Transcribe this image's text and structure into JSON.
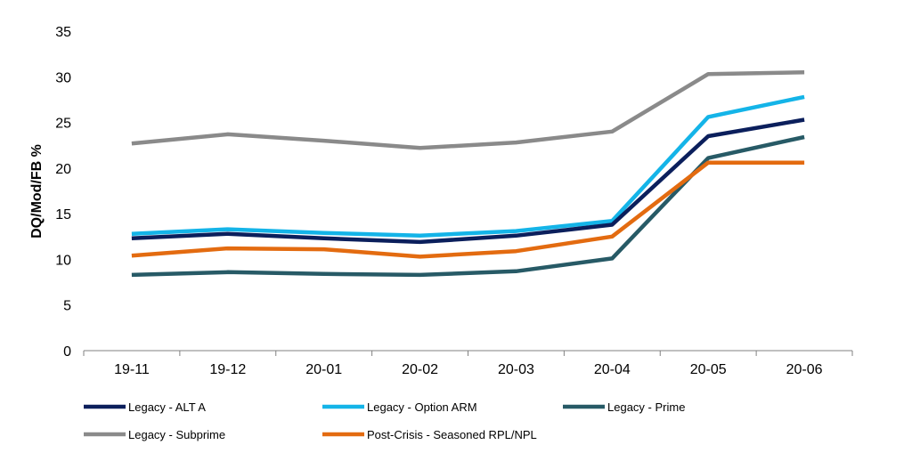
{
  "chart_data": {
    "type": "line",
    "title": "",
    "xlabel": "",
    "ylabel": "DQ/Mod/FB %",
    "ylim": [
      0,
      35
    ],
    "yticks": [
      0,
      5,
      10,
      15,
      20,
      25,
      30,
      35
    ],
    "grid": false,
    "legend_position": "bottom",
    "categories": [
      "19-11",
      "19-12",
      "20-01",
      "20-02",
      "20-03",
      "20-04",
      "20-05",
      "20-06"
    ],
    "series": [
      {
        "name": "Legacy - ALT A",
        "color": "#0b1f5c",
        "values": [
          12.3,
          12.8,
          12.3,
          11.9,
          12.6,
          13.8,
          23.5,
          25.3
        ]
      },
      {
        "name": "Legacy - Option ARM",
        "color": "#14b4e8",
        "values": [
          12.8,
          13.3,
          12.9,
          12.6,
          13.1,
          14.2,
          25.6,
          27.8
        ]
      },
      {
        "name": "Legacy - Prime",
        "color": "#275a66",
        "values": [
          8.3,
          8.6,
          8.4,
          8.3,
          8.7,
          10.1,
          21.1,
          23.4
        ]
      },
      {
        "name": "Legacy - Subprime",
        "color": "#8a8a8a",
        "values": [
          22.7,
          23.7,
          23.0,
          22.2,
          22.8,
          24.0,
          30.3,
          30.5
        ]
      },
      {
        "name": "Post-Crisis - Seasoned RPL/NPL",
        "color": "#e36b10",
        "values": [
          10.4,
          11.2,
          11.1,
          10.3,
          10.9,
          12.5,
          20.6,
          20.6
        ]
      }
    ]
  }
}
